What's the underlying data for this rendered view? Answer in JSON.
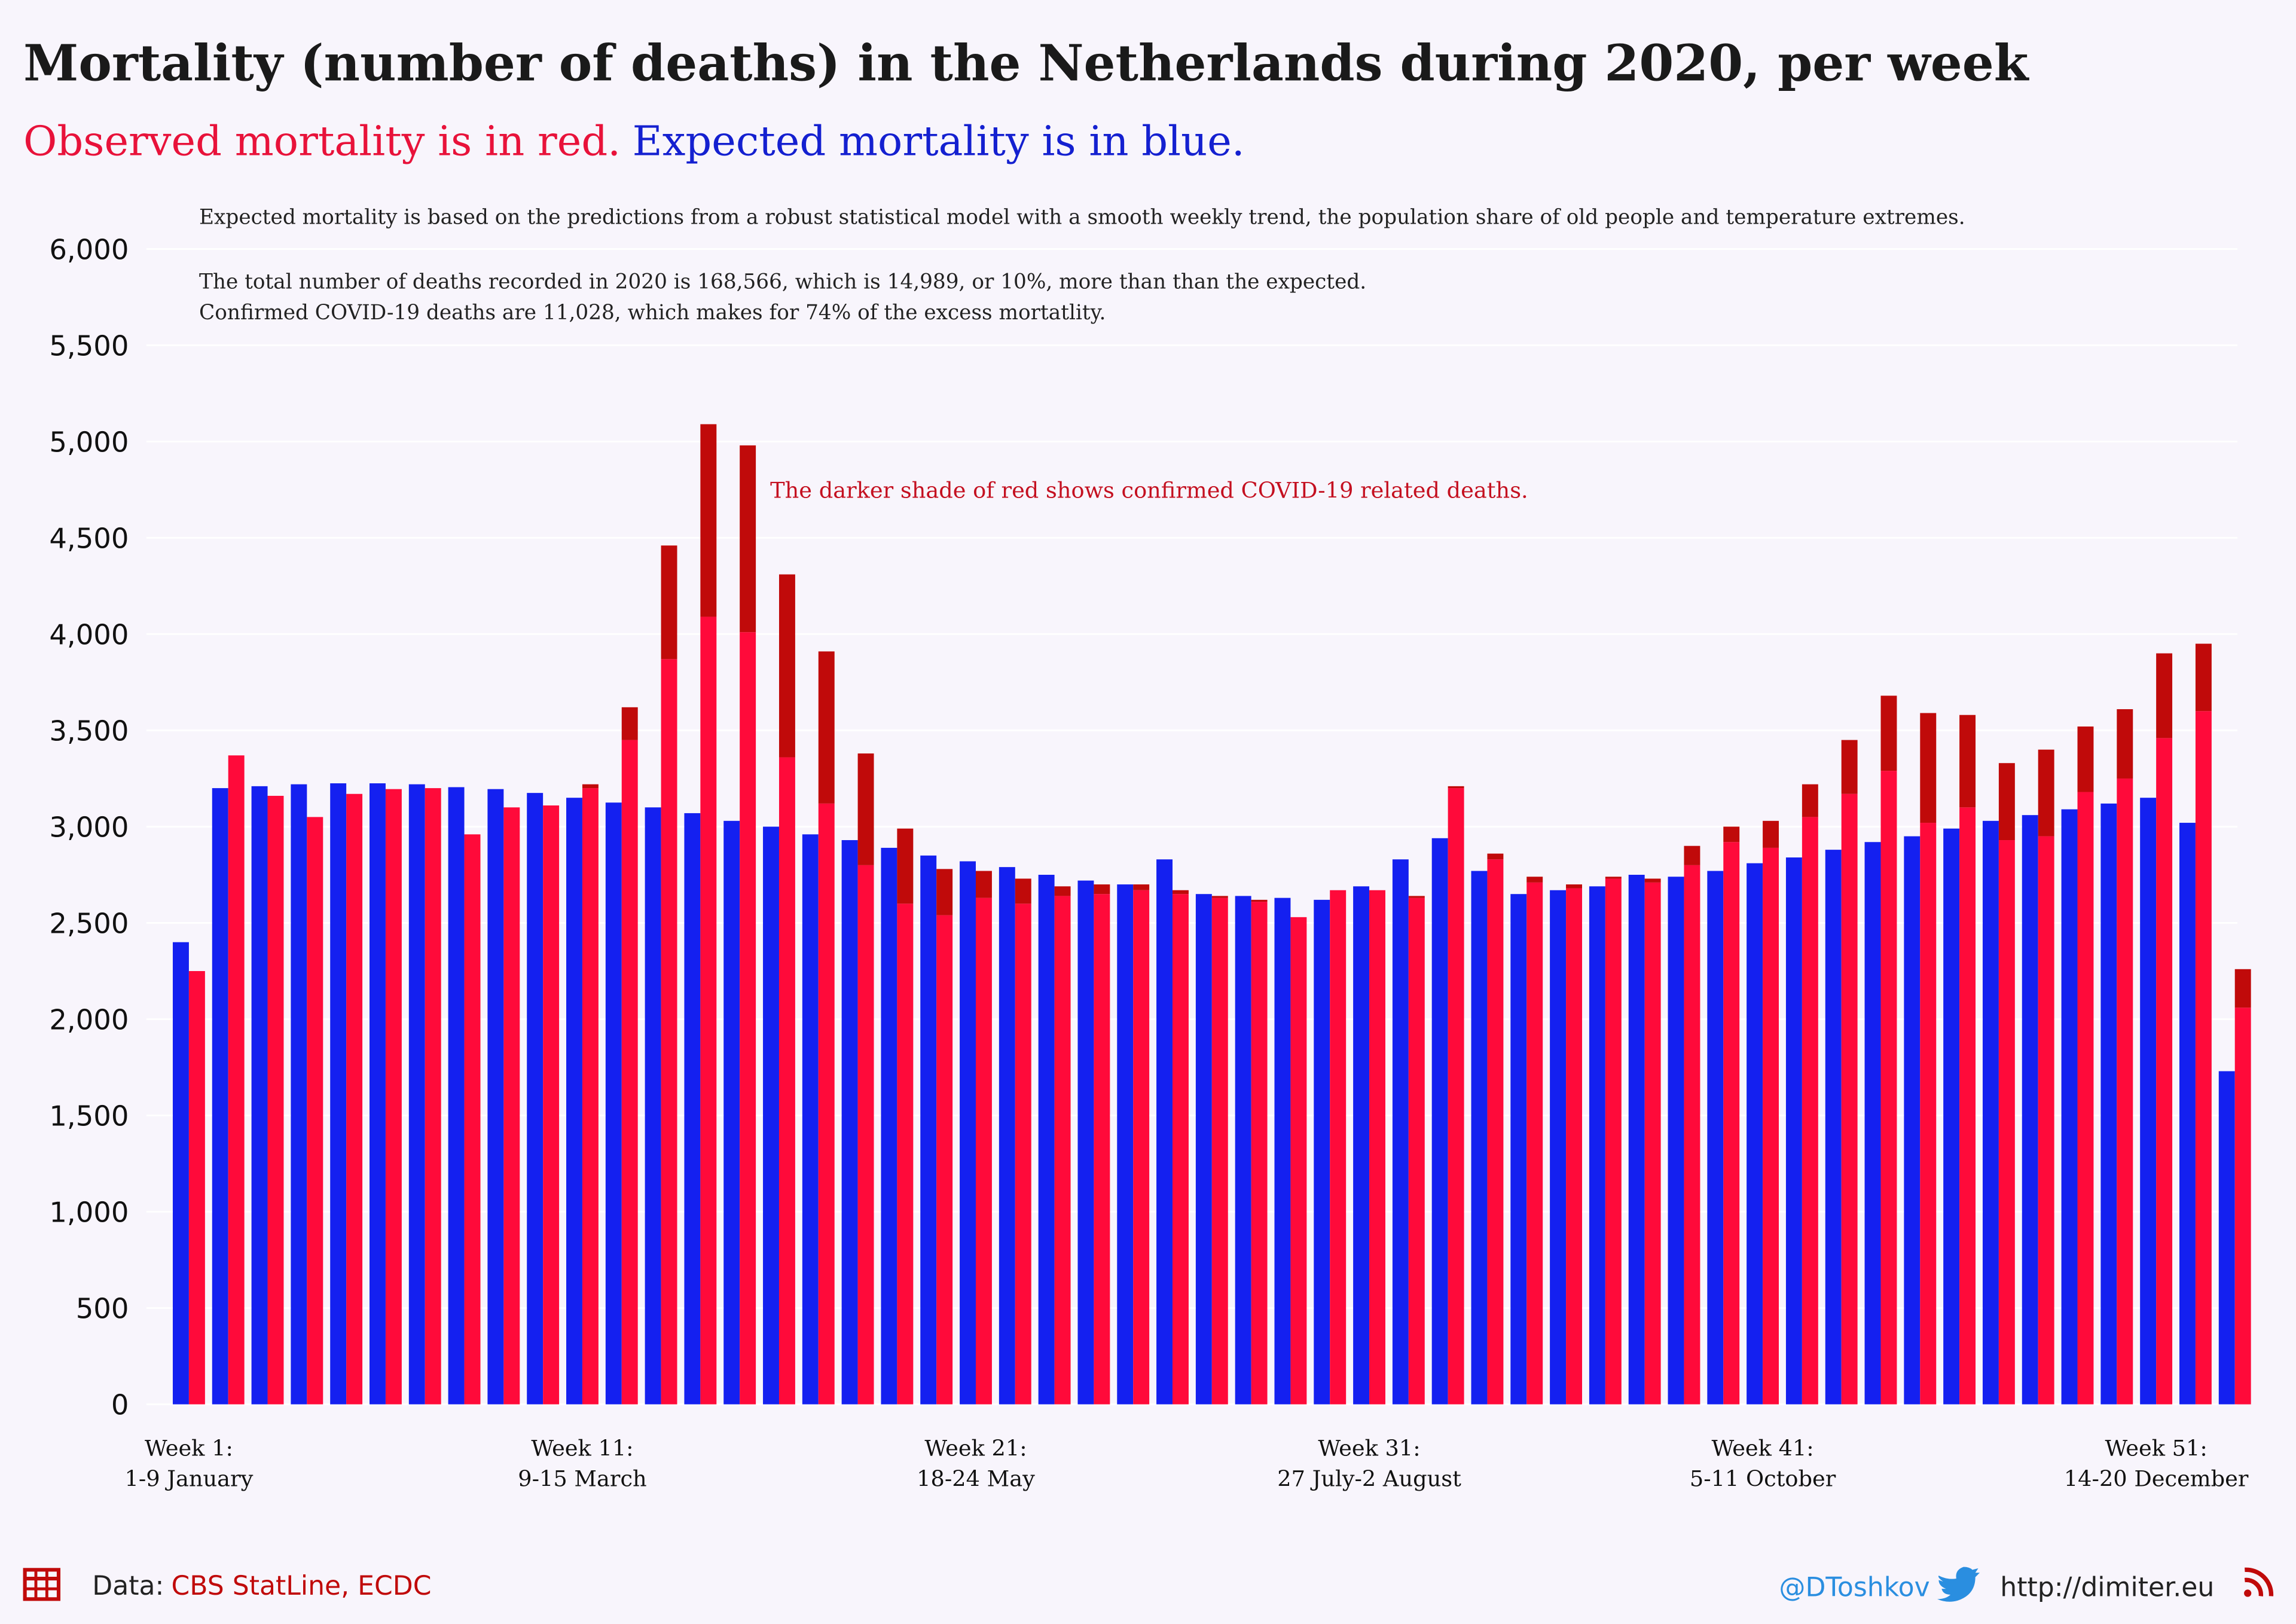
{
  "chart_data": {
    "type": "bar",
    "title": "Mortality (number of deaths) in the Netherlands during 2020, per week",
    "subtitle_observed": "Observed mortality is in red.",
    "subtitle_expected": "Expected mortality is in blue.",
    "notes": [
      "Expected mortality is based on the predictions from a robust statistical model with a smooth weekly trend, the population share of old people and temperature extremes.",
      "The total number of deaths recorded in 2020 is 168,566, which is 14,989, or 10%, more than than the expected.",
      "Confirmed COVID-19 deaths are 11,028, which makes for 74% of the excess mortatlity."
    ],
    "annotation": "The darker shade of red shows confirmed COVID-19 related deaths.",
    "categories": [
      [
        "Week 1:",
        "1-9 January"
      ],
      null,
      null,
      null,
      null,
      null,
      null,
      null,
      null,
      null,
      [
        "Week 11:",
        "9-15 March"
      ],
      null,
      null,
      null,
      null,
      null,
      null,
      null,
      null,
      null,
      [
        "Week 21:",
        "18-24 May"
      ],
      null,
      null,
      null,
      null,
      null,
      null,
      null,
      null,
      null,
      [
        "Week 31:",
        "27 July-2 August"
      ],
      null,
      null,
      null,
      null,
      null,
      null,
      null,
      null,
      null,
      [
        "Week 41:",
        "5-11 October"
      ],
      null,
      null,
      null,
      null,
      null,
      null,
      null,
      null,
      null,
      [
        "Week 51:",
        "14-20 December"
      ],
      null,
      null
    ],
    "series": [
      {
        "color": "#1420f0",
        "values": [
          2400,
          3200,
          3210,
          3220,
          3225,
          3225,
          3220,
          3205,
          3195,
          3175,
          3150,
          3125,
          3100,
          3070,
          3030,
          3000,
          2960,
          2930,
          2890,
          2850,
          2820,
          2790,
          2750,
          2720,
          2700,
          2830,
          2650,
          2640,
          2630,
          2620,
          2690,
          2830,
          2940,
          2770,
          2650,
          2670,
          2690,
          2750,
          2740,
          2770,
          2810,
          2840,
          2880,
          2920,
          2950,
          2990,
          3030,
          3060,
          3090,
          3120,
          3150,
          3020,
          1730
        ]
      },
      {
        "color": "#ff0a3a",
        "values": [
          2250,
          3370,
          3160,
          3050,
          3170,
          3195,
          3200,
          2960,
          3100,
          3110,
          3200,
          3450,
          3870,
          4090,
          4010,
          3360,
          3120,
          2800,
          2600,
          2540,
          2630,
          2600,
          2640,
          2650,
          2670,
          2650,
          2630,
          2610,
          2530,
          2670,
          2670,
          2630,
          3200,
          2830,
          2710,
          2680,
          2730,
          2710,
          2800,
          2920,
          2890,
          3050,
          3170,
          3290,
          3020,
          3100,
          2930,
          2950,
          3180,
          3250,
          3460,
          3600,
          2060
        ]
      },
      {
        "color": "#c00a0a",
        "values": [
          0,
          0,
          0,
          0,
          0,
          0,
          0,
          0,
          0,
          0,
          20,
          170,
          590,
          1000,
          970,
          950,
          790,
          580,
          390,
          240,
          140,
          130,
          50,
          50,
          30,
          20,
          10,
          10,
          0,
          0,
          0,
          10,
          10,
          30,
          30,
          20,
          10,
          20,
          100,
          80,
          140,
          170,
          280,
          390,
          570,
          480,
          400,
          450,
          340,
          360,
          440,
          350,
          200
        ]
      }
    ],
    "ylim": [
      0,
      6000
    ],
    "yticks": [
      0,
      500,
      {
        "value": 1000,
        "label": "1,000"
      },
      {
        "value": 1500,
        "label": "1,500"
      },
      {
        "value": 2000,
        "label": "2,000"
      },
      {
        "value": 2500,
        "label": "2,500"
      },
      {
        "value": 3000,
        "label": "3,000"
      },
      {
        "value": 3500,
        "label": "3,500"
      },
      {
        "value": 4000,
        "label": "4,000"
      },
      {
        "value": 4500,
        "label": "4,500"
      },
      {
        "value": 5000,
        "label": "5,000"
      },
      {
        "value": 5500,
        "label": "5,500"
      },
      {
        "value": 6000,
        "label": "6,000"
      }
    ],
    "grid": true
  },
  "footer": {
    "data_label": "Data:",
    "data_source": "CBS StatLine, ECDC",
    "handle": "@DToshkov",
    "website": "http://dimiter.eu"
  }
}
